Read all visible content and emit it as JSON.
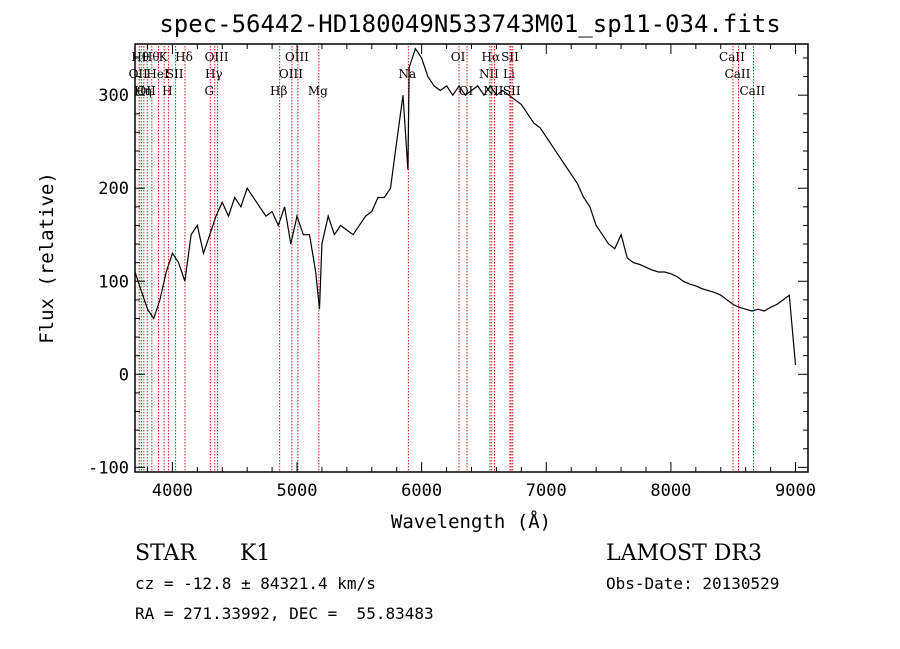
{
  "chart_data": {
    "type": "line",
    "title": "spec-56442-HD180049N533743M01_sp11-034.fits",
    "xlabel": "Wavelength (Å)",
    "ylabel": "Flux (relative)",
    "xlim": [
      3700,
      9100
    ],
    "ylim": [
      -105,
      355
    ],
    "xticks": [
      4000,
      5000,
      6000,
      7000,
      8000,
      9000
    ],
    "yticks": [
      -100,
      0,
      100,
      200,
      300
    ],
    "grid": false,
    "series": [
      {
        "x": [
          3700,
          3750,
          3800,
          3850,
          3900,
          3950,
          4000,
          4050,
          4100,
          4150,
          4200,
          4250,
          4300,
          4350,
          4400,
          4450,
          4500,
          4550,
          4600,
          4650,
          4700,
          4750,
          4800,
          4850,
          4900,
          4950,
          5000,
          5050,
          5100,
          5150,
          5180,
          5200,
          5250,
          5300,
          5350,
          5400,
          5450,
          5500,
          5550,
          5600,
          5650,
          5700,
          5750,
          5800,
          5850,
          5890,
          5900,
          5950,
          6000,
          6050,
          6100,
          6150,
          6200,
          6250,
          6300,
          6350,
          6400,
          6450,
          6500,
          6550,
          6600,
          6650,
          6700,
          6750,
          6800,
          6850,
          6900,
          6950,
          7000,
          7050,
          7100,
          7150,
          7200,
          7250,
          7300,
          7350,
          7400,
          7450,
          7500,
          7550,
          7600,
          7650,
          7700,
          7750,
          7800,
          7850,
          7900,
          7950,
          8000,
          8050,
          8100,
          8150,
          8200,
          8250,
          8300,
          8350,
          8400,
          8450,
          8500,
          8550,
          8600,
          8650,
          8700,
          8750,
          8800,
          8850,
          8900,
          8950,
          9000
        ],
        "values": [
          110,
          90,
          70,
          60,
          80,
          110,
          130,
          120,
          100,
          150,
          160,
          130,
          150,
          170,
          185,
          170,
          190,
          180,
          200,
          190,
          180,
          170,
          175,
          160,
          180,
          140,
          170,
          150,
          150,
          110,
          70,
          140,
          170,
          150,
          160,
          155,
          150,
          160,
          170,
          175,
          190,
          190,
          200,
          250,
          300,
          220,
          330,
          350,
          340,
          320,
          310,
          305,
          310,
          300,
          310,
          300,
          305,
          310,
          300,
          310,
          300,
          305,
          300,
          295,
          290,
          280,
          270,
          265,
          255,
          245,
          235,
          225,
          215,
          205,
          190,
          180,
          160,
          150,
          140,
          135,
          150,
          125,
          120,
          118,
          115,
          112,
          110,
          110,
          108,
          105,
          100,
          97,
          95,
          92,
          90,
          88,
          85,
          80,
          75,
          72,
          70,
          68,
          70,
          68,
          72,
          75,
          80,
          85,
          10
        ]
      }
    ],
    "lines": [
      {
        "x": 3734,
        "label": "OII",
        "row": 1
      },
      {
        "x": 3750,
        "label": "Hθ",
        "row": 0
      },
      {
        "x": 3771,
        "label": "Hη",
        "row": 2
      },
      {
        "x": 3798,
        "label": "OII",
        "row": 2
      },
      {
        "x": 3835,
        "label": "Hθ",
        "row": 0
      },
      {
        "x": 3889,
        "label": "HeI",
        "row": 1
      },
      {
        "x": 3934,
        "label": "K",
        "row": 0
      },
      {
        "x": 3968,
        "label": "H",
        "row": 2
      },
      {
        "x": 4026,
        "label": "SII",
        "row": 1
      },
      {
        "x": 4101,
        "label": "Hδ",
        "row": 0
      },
      {
        "x": 4304,
        "label": "G",
        "row": 2
      },
      {
        "x": 4340,
        "label": "Hγ",
        "row": 1
      },
      {
        "x": 4363,
        "label": "OIII",
        "row": 0
      },
      {
        "x": 4861,
        "label": "Hβ",
        "row": 2
      },
      {
        "x": 4959,
        "label": "OIII",
        "row": 1
      },
      {
        "x": 5007,
        "label": "OIII",
        "row": 0
      },
      {
        "x": 5175,
        "label": "Mg",
        "row": 2
      },
      {
        "x": 5893,
        "label": "Na",
        "row": 1
      },
      {
        "x": 6300,
        "label": "OI",
        "row": 0
      },
      {
        "x": 6364,
        "label": "OI",
        "row": 2
      },
      {
        "x": 6548,
        "label": "NII",
        "row": 1
      },
      {
        "x": 6563,
        "label": "Hα",
        "row": 0
      },
      {
        "x": 6584,
        "label": "NII",
        "row": 2
      },
      {
        "x": 6708,
        "label": "Li",
        "row": 1
      },
      {
        "x": 6717,
        "label": "SII",
        "row": 0
      },
      {
        "x": 6731,
        "label": "SII",
        "row": 2
      },
      {
        "x": 8498,
        "label": "CaII",
        "row": 0
      },
      {
        "x": 8542,
        "label": "CaII",
        "row": 1
      },
      {
        "x": 8662,
        "label": "CaII",
        "row": 2
      }
    ]
  },
  "info": {
    "object_class": "STAR",
    "subclass": "K1",
    "survey": "LAMOST DR3",
    "cz": "cz = -12.8 ± 84321.4 km/s",
    "obs_date": "Obs-Date: 20130529",
    "coords": "RA = 271.33992, DEC =  55.83483"
  },
  "colors": {
    "spectrum": "#000000",
    "line_marker": "#cc0000",
    "background": "#ffffff"
  }
}
